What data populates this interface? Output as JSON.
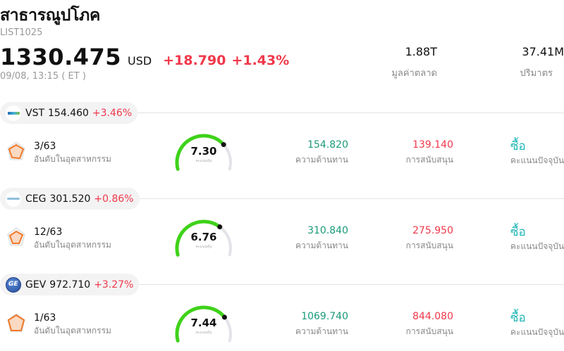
{
  "header": {
    "title": "สาธารณูปโภค",
    "code": "LIST1025",
    "price": "1330.475",
    "currency": "USD",
    "change": "+18.790",
    "change_pct": "+1.43%",
    "timestamp": "09/08, 13:15  ( ET )"
  },
  "stats": {
    "market_cap": {
      "value": "1.88T",
      "label": "มูลค่าตลาด"
    },
    "volume": {
      "value": "37.41M",
      "label": "ปริมาตร"
    }
  },
  "colors": {
    "up_red": "#f0384a",
    "resistance_green": "#1a9a7a",
    "buy_teal": "#1fb5b5",
    "gauge_green": "#3fd21a",
    "gauge_track": "#e3e3ea"
  },
  "stocks": [
    {
      "symbol": "VST",
      "price": "154.460",
      "change_pct": "+3.46%",
      "logo": "vistra-logo",
      "rank": "3/63",
      "rank_label": "อันดับในอุตสาหกรรม",
      "score": "7.30",
      "score_fraction": 0.73,
      "score_caption": "คะแนนหุ้น",
      "resistance": "154.820",
      "resistance_label": "ความต้านทาน",
      "support": "139.140",
      "support_label": "การสนับสนุน",
      "recommendation": "ซื้อ",
      "recommendation_label": "คะแนนปัจจุบัน"
    },
    {
      "symbol": "CEG",
      "price": "301.520",
      "change_pct": "+0.86%",
      "logo": "constellation-logo",
      "rank": "12/63",
      "rank_label": "อันดับในอุตสาหกรรม",
      "score": "6.76",
      "score_fraction": 0.676,
      "score_caption": "คะแนนหุ้น",
      "resistance": "310.840",
      "resistance_label": "ความต้านทาน",
      "support": "275.950",
      "support_label": "การสนับสนุน",
      "recommendation": "ซื้อ",
      "recommendation_label": "คะแนนปัจจุบัน"
    },
    {
      "symbol": "GEV",
      "price": "972.710",
      "change_pct": "+3.27%",
      "logo": "ge-vernova-logo",
      "rank": "1/63",
      "rank_label": "อันดับในอุตสาหกรรม",
      "score": "7.44",
      "score_fraction": 0.744,
      "score_caption": "คะแนนหุ้น",
      "resistance": "1069.740",
      "resistance_label": "ความต้านทาน",
      "support": "844.080",
      "support_label": "การสนับสนุน",
      "recommendation": "ซื้อ",
      "recommendation_label": "คะแนนปัจจุบัน"
    }
  ]
}
